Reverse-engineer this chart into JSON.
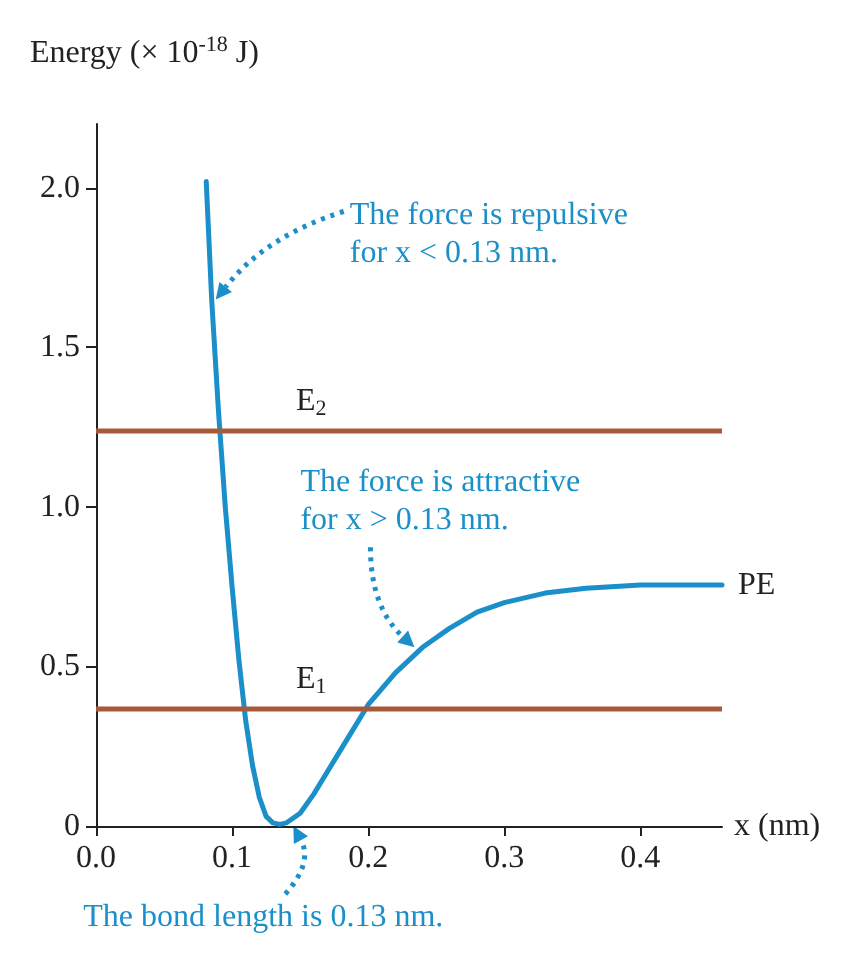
{
  "chart_data": {
    "type": "line",
    "ylabel": "Energy (× 10$^{-18}$ J)",
    "xlabel": "x (nm)",
    "xlim": [
      0,
      0.46
    ],
    "ylim": [
      0,
      2.2
    ],
    "xticks": [
      {
        "value": 0,
        "label": "0.0"
      },
      0.1,
      0.2,
      0.3,
      0.4
    ],
    "yticks": [
      0,
      0.5,
      {
        "value": 1,
        "label": "1.0"
      },
      1.5,
      {
        "value": 2,
        "label": "2.0"
      }
    ],
    "x": [
      0.081,
      0.085,
      0.09,
      0.095,
      0.1,
      0.105,
      0.11,
      0.115,
      0.12,
      0.125,
      0.13,
      0.135,
      0.14,
      0.15,
      0.16,
      0.17,
      0.18,
      0.19,
      0.2,
      0.22,
      0.24,
      0.26,
      0.28,
      0.3,
      0.33,
      0.36,
      0.4,
      0.43,
      0.46
    ],
    "series": [
      {
        "name": "PE",
        "color": "#1a8fc9",
        "values": [
          2.02,
          1.65,
          1.3,
          1.0,
          0.75,
          0.52,
          0.33,
          0.19,
          0.09,
          0.03,
          0.01,
          0.005,
          0.01,
          0.04,
          0.1,
          0.17,
          0.24,
          0.31,
          0.38,
          0.48,
          0.56,
          0.62,
          0.67,
          0.7,
          0.73,
          0.745,
          0.755,
          0.755,
          0.755
        ]
      }
    ],
    "ref_lines": [
      {
        "axis": "y",
        "value": 1.24,
        "label": "E$_{2}$",
        "color": "#a65a3a"
      },
      {
        "axis": "y",
        "value": 0.37,
        "label": "E$_{1}$",
        "color": "#a65a3a"
      }
    ],
    "annotations": [
      {
        "text": "The force is repulsive for x < 0.13 nm.",
        "x": 0.088,
        "y": 1.65
      },
      {
        "text": "The force is attractive for x > 0.13 nm.",
        "x": 0.234,
        "y": 0.56
      },
      {
        "text": "The bond length is 0.13 nm.",
        "x": 0.145,
        "y": 0
      }
    ],
    "grid": false,
    "legend": false,
    "marker": "none",
    "line_style": "solid"
  }
}
